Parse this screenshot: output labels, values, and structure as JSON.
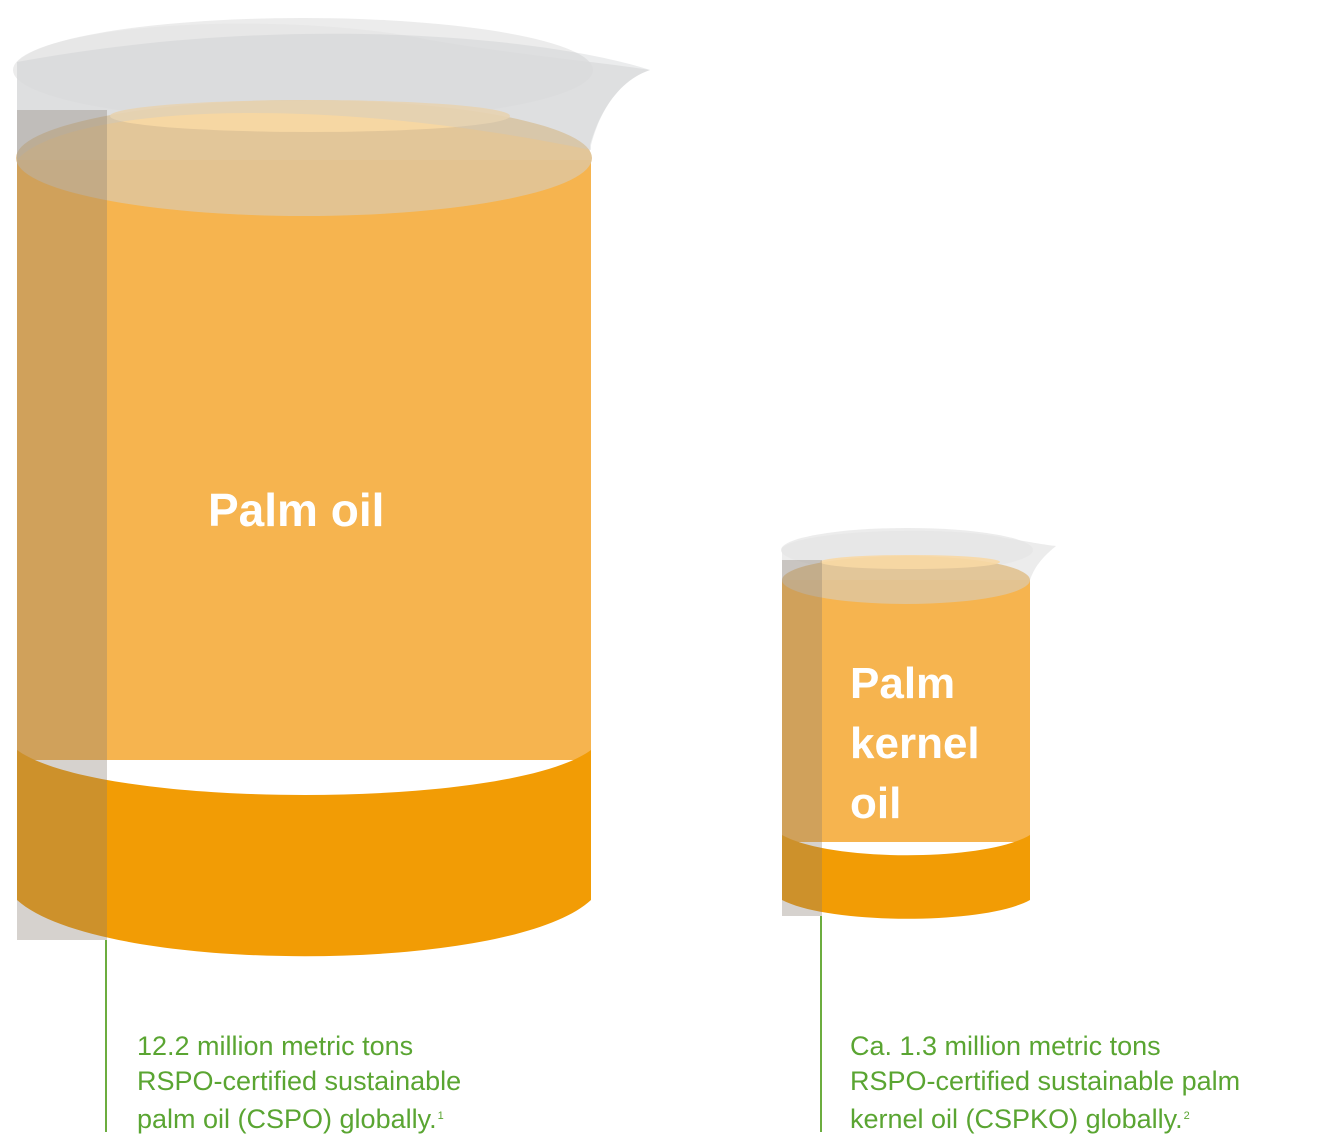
{
  "colors": {
    "oil_body": "#f6b44f",
    "oil_bottom": "#f29c05",
    "glass": "#d4d4d4",
    "leader_line": "#6cad3f",
    "caption_text": "#5aa532",
    "label_text": "#ffffff"
  },
  "beakers": [
    {
      "name": "palm-oil",
      "label": "Palm oil",
      "caption": {
        "line1": "12.2 million metric tons",
        "line2": "RSPO-certified sustainable",
        "line3": "palm oil (CSPO) globally.",
        "footnote": "1"
      },
      "volume_million_tons": 12.2
    },
    {
      "name": "palm-kernel-oil",
      "label_lines": [
        "Palm",
        "kernel",
        "oil"
      ],
      "caption": {
        "line1": "Ca. 1.3 million metric tons",
        "line2": "RSPO-certified sustainable palm",
        "line3": "kernel oil (CSPKO) globally.",
        "footnote": "2"
      },
      "volume_million_tons": 1.3
    }
  ]
}
